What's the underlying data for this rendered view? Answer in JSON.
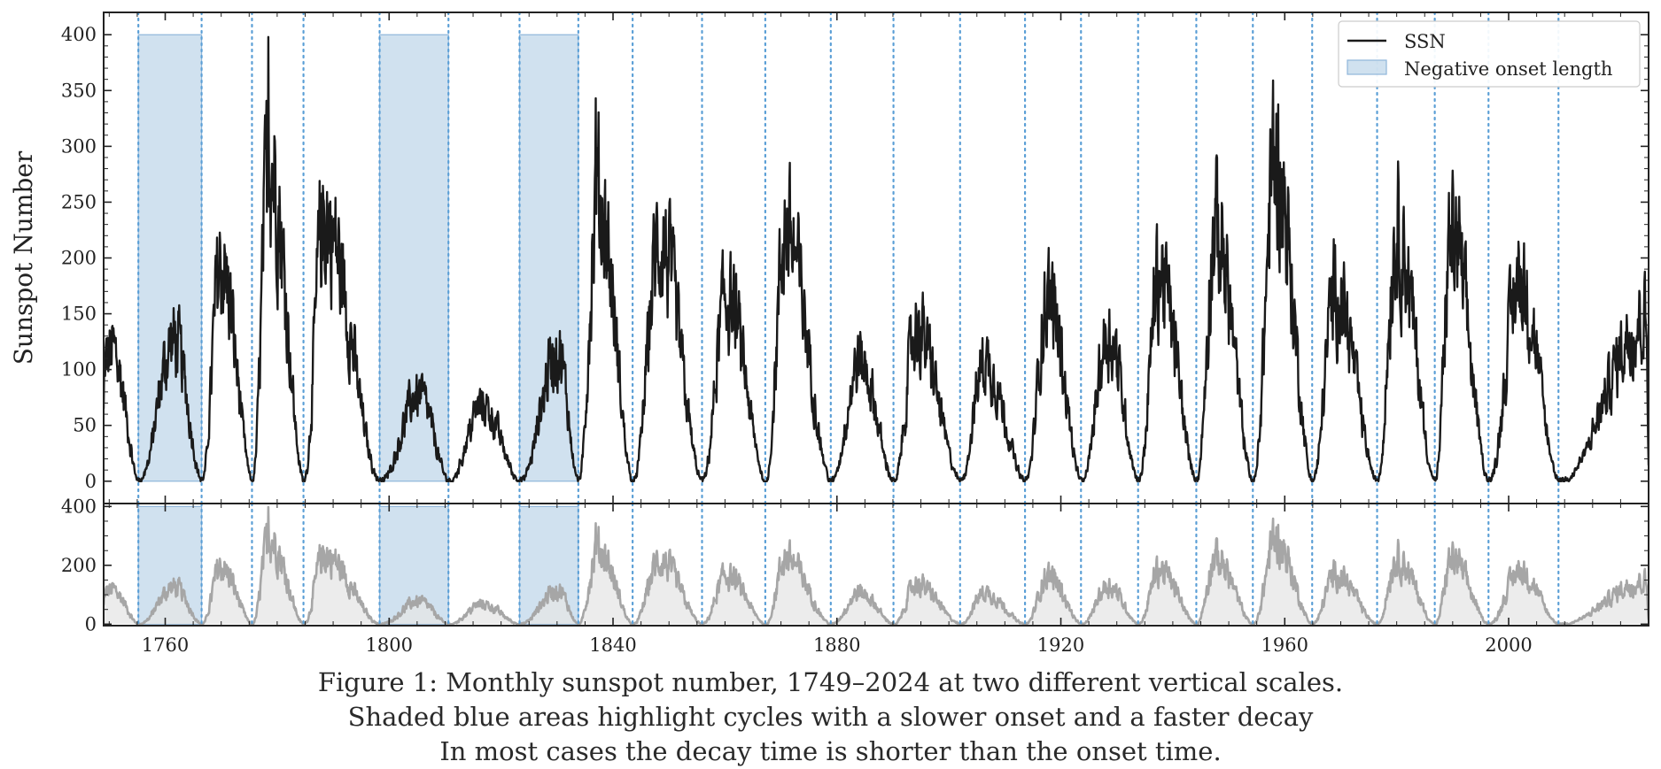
{
  "figure": {
    "caption_lines": [
      "Figure 1: Monthly sunspot number, 1749–2024 at two different vertical scales.",
      "Shaded blue areas highlight cycles with a slower onset and a faster decay",
      "In most cases the decay time is shorter than the onset time."
    ]
  },
  "colors": {
    "ssn_line": "#1a1a1a",
    "shade_fill": "#a9c8e2",
    "shade_edge": "#8fb6da",
    "cycle_line": "#5b9fd6",
    "lower_line": "#a6a6a6",
    "lower_fill": "#e6e6e6"
  },
  "chart_data": {
    "type": "line",
    "ylabel": "Sunspot Number",
    "xlabel": "",
    "xlim": [
      1749,
      2025
    ],
    "x_ticks": [
      1760,
      1800,
      1840,
      1880,
      1920,
      1960,
      2000
    ],
    "x_tick_labels": [
      "1760",
      "1800",
      "1840",
      "1880",
      "1920",
      "1960",
      "2000"
    ],
    "upper_panel": {
      "ylim": [
        -20,
        420
      ],
      "y_ticks": [
        0,
        50,
        100,
        150,
        200,
        250,
        300,
        350,
        400
      ],
      "y_tick_labels": [
        "0",
        "50",
        "100",
        "150",
        "200",
        "250",
        "300",
        "350",
        "400"
      ]
    },
    "lower_panel": {
      "ylim": [
        -5,
        410
      ],
      "y_ticks": [
        0,
        200,
        400
      ],
      "y_tick_labels": [
        "0",
        "200",
        "400"
      ]
    },
    "legend": {
      "position": "top-right",
      "entries": [
        "SSN",
        "Negative onset length"
      ]
    },
    "series": [
      {
        "name": "SSN",
        "kind": "monthly line (approximate envelope per cycle)"
      },
      {
        "name": "Negative onset length",
        "kind": "shaded spans",
        "value": 400
      }
    ],
    "shaded_spans": [
      [
        1755.2,
        1766.5
      ],
      [
        1798.3,
        1810.6
      ],
      [
        1823.3,
        1833.8
      ]
    ],
    "cycle_minima": [
      1755.2,
      1766.5,
      1775.5,
      1784.7,
      1798.3,
      1810.6,
      1823.3,
      1833.8,
      1843.5,
      1855.9,
      1867.2,
      1878.9,
      1890.1,
      1902.0,
      1913.6,
      1923.6,
      1933.8,
      1944.2,
      1954.3,
      1964.9,
      1976.5,
      1986.8,
      1996.4,
      2008.9
    ],
    "cycle_peaks": [
      {
        "x": 1750.5,
        "y": 120
      },
      {
        "x": 1761.5,
        "y": 130
      },
      {
        "x": 1769.8,
        "y": 200
      },
      {
        "x": 1778.5,
        "y": 300
      },
      {
        "x": 1788.2,
        "y": 240
      },
      {
        "x": 1805.2,
        "y": 80
      },
      {
        "x": 1816.5,
        "y": 70
      },
      {
        "x": 1830.0,
        "y": 120
      },
      {
        "x": 1837.2,
        "y": 260
      },
      {
        "x": 1848.2,
        "y": 220
      },
      {
        "x": 1860.2,
        "y": 170
      },
      {
        "x": 1870.7,
        "y": 230
      },
      {
        "x": 1884.0,
        "y": 110
      },
      {
        "x": 1894.1,
        "y": 140
      },
      {
        "x": 1906.2,
        "y": 110
      },
      {
        "x": 1917.7,
        "y": 170
      },
      {
        "x": 1928.4,
        "y": 135
      },
      {
        "x": 1937.5,
        "y": 190
      },
      {
        "x": 1947.5,
        "y": 230
      },
      {
        "x": 1958.2,
        "y": 290
      },
      {
        "x": 1968.9,
        "y": 175
      },
      {
        "x": 1979.9,
        "y": 230
      },
      {
        "x": 1989.7,
        "y": 225
      },
      {
        "x": 2001.8,
        "y": 185
      },
      {
        "x": 2014.2,
        "y": 125
      },
      {
        "x": 2024.5,
        "y": 150
      }
    ],
    "notable_spikes": [
      {
        "x": 1778.4,
        "y": 398
      },
      {
        "x": 1957.9,
        "y": 359
      },
      {
        "x": 1836.9,
        "y": 343
      }
    ]
  }
}
